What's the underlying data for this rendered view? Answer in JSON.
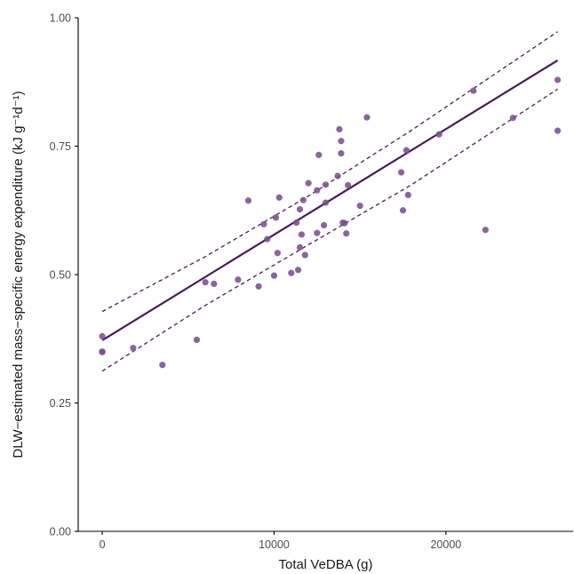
{
  "chart_data": {
    "type": "scatter",
    "title": "",
    "xlabel": "Total VeDBA (g)",
    "ylabel": "DLW−estimated mass−specific energy expenditure (kJ g⁻¹d⁻¹)",
    "xlim": [
      -1400,
      27400
    ],
    "ylim": [
      0,
      1.0
    ],
    "x_ticks": [
      0,
      10000,
      20000
    ],
    "x_tick_labels": [
      "0",
      "10000",
      "20000"
    ],
    "y_ticks": [
      0.0,
      0.25,
      0.5,
      0.75,
      1.0
    ],
    "y_tick_labels": [
      "0.00",
      "0.25",
      "0.50",
      "0.75",
      "1.00"
    ],
    "grid": false,
    "legend": "none",
    "colors": {
      "points": "#7b4f8e",
      "fit_line": "#4a1a5c",
      "ci_line": "#4a1a5c"
    },
    "series": [
      {
        "kind": "points",
        "x": [
          0,
          0,
          0,
          1800,
          3500,
          5500,
          6000,
          6500,
          7900,
          8500,
          9100,
          9400,
          9600,
          10000,
          10100,
          10200,
          10300,
          11000,
          11300,
          11400,
          11500,
          11500,
          11600,
          11700,
          11800,
          12000,
          12500,
          12500,
          12600,
          12900,
          13000,
          13000,
          13700,
          13800,
          13900,
          13900,
          14000,
          14100,
          14200,
          14300,
          15000,
          15400,
          17400,
          17500,
          17700,
          17800,
          19600,
          21600,
          22300,
          23900,
          26500,
          26500
        ],
        "y": [
          0.38,
          0.35,
          0.349,
          0.357,
          0.324,
          0.373,
          0.485,
          0.482,
          0.49,
          0.644,
          0.477,
          0.598,
          0.569,
          0.498,
          0.611,
          0.542,
          0.65,
          0.503,
          0.601,
          0.509,
          0.553,
          0.627,
          0.578,
          0.645,
          0.538,
          0.678,
          0.581,
          0.664,
          0.733,
          0.596,
          0.64,
          0.675,
          0.692,
          0.783,
          0.76,
          0.736,
          0.601,
          0.6,
          0.58,
          0.674,
          0.634,
          0.806,
          0.699,
          0.625,
          0.742,
          0.655,
          0.773,
          0.858,
          0.587,
          0.805,
          0.78,
          0.879
        ]
      },
      {
        "kind": "fit",
        "x": [
          0,
          26500
        ],
        "y": [
          0.372,
          0.917
        ]
      },
      {
        "kind": "ci_upper",
        "x": [
          0,
          6000,
          12000,
          18000,
          26500
        ],
        "y": [
          0.428,
          0.535,
          0.653,
          0.781,
          0.973
        ]
      },
      {
        "kind": "ci_lower",
        "x": [
          0,
          6000,
          12000,
          18000,
          26500
        ],
        "y": [
          0.312,
          0.44,
          0.558,
          0.675,
          0.861
        ]
      }
    ]
  }
}
